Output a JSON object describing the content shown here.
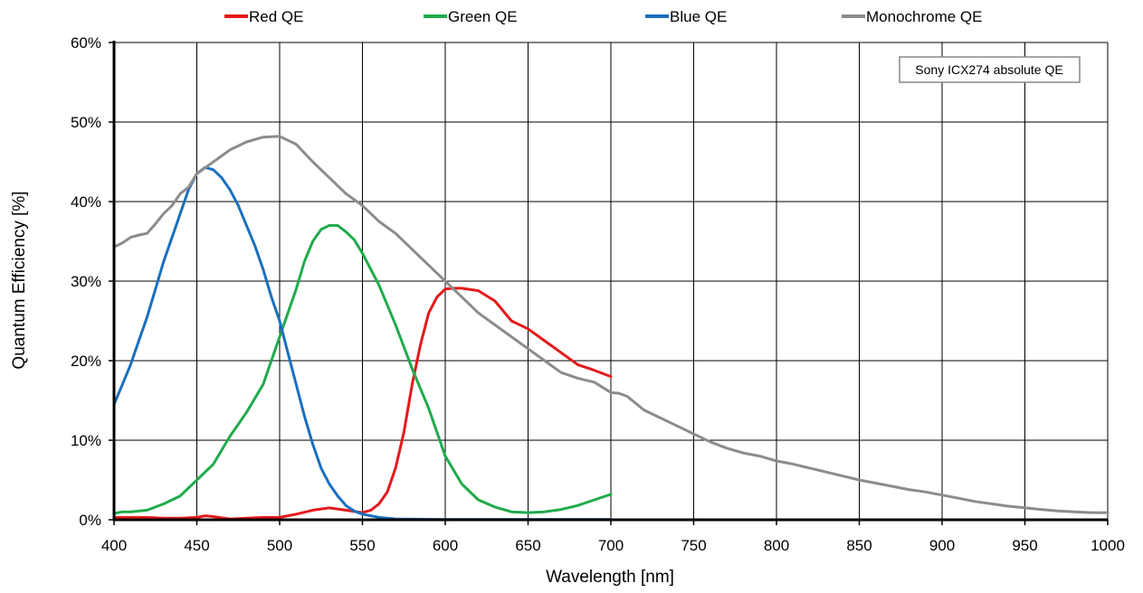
{
  "chart_data": {
    "type": "line",
    "xlabel": "Wavelength [nm]",
    "ylabel": "Quantum Efficiency [%]",
    "xlim": [
      400,
      1000
    ],
    "ylim": [
      0,
      60
    ],
    "x_ticks": [
      400,
      450,
      500,
      550,
      600,
      650,
      700,
      750,
      800,
      850,
      900,
      950,
      1000
    ],
    "y_ticks": [
      0,
      10,
      20,
      30,
      40,
      50,
      60
    ],
    "y_tick_labels": [
      "0%",
      "10%",
      "20%",
      "30%",
      "40%",
      "50%",
      "60%"
    ],
    "grid": true,
    "legend_position": "top",
    "annotation": "Sony ICX274 absolute QE",
    "series": [
      {
        "name": "Red QE",
        "color": "#e3191c",
        "points": [
          [
            400,
            0.3
          ],
          [
            410,
            0.3
          ],
          [
            420,
            0.3
          ],
          [
            430,
            0.2
          ],
          [
            440,
            0.2
          ],
          [
            450,
            0.3
          ],
          [
            455,
            0.5
          ],
          [
            460,
            0.4
          ],
          [
            470,
            0.1
          ],
          [
            480,
            0.2
          ],
          [
            490,
            0.3
          ],
          [
            500,
            0.3
          ],
          [
            510,
            0.7
          ],
          [
            520,
            1.2
          ],
          [
            530,
            1.5
          ],
          [
            540,
            1.2
          ],
          [
            550,
            0.9
          ],
          [
            555,
            1.2
          ],
          [
            560,
            2.0
          ],
          [
            565,
            3.5
          ],
          [
            570,
            6.5
          ],
          [
            575,
            11
          ],
          [
            580,
            17
          ],
          [
            585,
            22
          ],
          [
            590,
            26
          ],
          [
            595,
            28
          ],
          [
            600,
            29
          ],
          [
            605,
            29.1
          ],
          [
            610,
            29.1
          ],
          [
            620,
            28.8
          ],
          [
            630,
            27.5
          ],
          [
            640,
            25
          ],
          [
            650,
            24
          ],
          [
            660,
            22.5
          ],
          [
            670,
            21
          ],
          [
            680,
            19.5
          ],
          [
            690,
            18.8
          ],
          [
            700,
            18
          ]
        ]
      },
      {
        "name": "Green QE",
        "color": "#1fab4b",
        "points": [
          [
            400,
            0.8
          ],
          [
            405,
            1.0
          ],
          [
            410,
            1.0
          ],
          [
            420,
            1.2
          ],
          [
            430,
            2.0
          ],
          [
            440,
            3.0
          ],
          [
            450,
            5.0
          ],
          [
            460,
            7.0
          ],
          [
            470,
            10.5
          ],
          [
            480,
            13.5
          ],
          [
            490,
            17.0
          ],
          [
            500,
            23.0
          ],
          [
            510,
            29.0
          ],
          [
            515,
            32.5
          ],
          [
            520,
            35.0
          ],
          [
            525,
            36.5
          ],
          [
            530,
            37.0
          ],
          [
            535,
            37.0
          ],
          [
            540,
            36.2
          ],
          [
            545,
            35.2
          ],
          [
            550,
            33.5
          ],
          [
            560,
            29.5
          ],
          [
            570,
            24.5
          ],
          [
            580,
            19.0
          ],
          [
            590,
            14.0
          ],
          [
            600,
            8.0
          ],
          [
            610,
            4.5
          ],
          [
            620,
            2.5
          ],
          [
            630,
            1.6
          ],
          [
            640,
            1.0
          ],
          [
            650,
            0.9
          ],
          [
            660,
            1.0
          ],
          [
            670,
            1.3
          ],
          [
            680,
            1.8
          ],
          [
            690,
            2.5
          ],
          [
            700,
            3.2
          ]
        ]
      },
      {
        "name": "Blue QE",
        "color": "#1a6fbd",
        "points": [
          [
            400,
            14.5
          ],
          [
            405,
            17.0
          ],
          [
            410,
            19.5
          ],
          [
            415,
            22.5
          ],
          [
            420,
            25.5
          ],
          [
            425,
            29.0
          ],
          [
            430,
            32.5
          ],
          [
            435,
            35.5
          ],
          [
            440,
            38.5
          ],
          [
            445,
            41.5
          ],
          [
            450,
            43.5
          ],
          [
            455,
            44.3
          ],
          [
            460,
            44.0
          ],
          [
            465,
            43.0
          ],
          [
            470,
            41.5
          ],
          [
            475,
            39.5
          ],
          [
            480,
            37.0
          ],
          [
            485,
            34.5
          ],
          [
            490,
            31.5
          ],
          [
            495,
            28.0
          ],
          [
            500,
            25.0
          ],
          [
            505,
            21.0
          ],
          [
            510,
            17.0
          ],
          [
            515,
            13.0
          ],
          [
            520,
            9.5
          ],
          [
            525,
            6.5
          ],
          [
            530,
            4.5
          ],
          [
            535,
            3.0
          ],
          [
            540,
            1.8
          ],
          [
            545,
            1.1
          ],
          [
            550,
            0.7
          ],
          [
            560,
            0.3
          ],
          [
            570,
            0.1
          ],
          [
            600,
            0.05
          ],
          [
            650,
            0.05
          ],
          [
            700,
            0.05
          ]
        ]
      },
      {
        "name": "Monochrome QE",
        "color": "#8c8c8c",
        "points": [
          [
            400,
            34.3
          ],
          [
            405,
            34.8
          ],
          [
            410,
            35.5
          ],
          [
            415,
            35.8
          ],
          [
            420,
            36.0
          ],
          [
            425,
            37.2
          ],
          [
            430,
            38.5
          ],
          [
            435,
            39.5
          ],
          [
            440,
            41.0
          ],
          [
            445,
            41.8
          ],
          [
            450,
            43.5
          ],
          [
            460,
            45.0
          ],
          [
            470,
            46.5
          ],
          [
            480,
            47.5
          ],
          [
            490,
            48.1
          ],
          [
            500,
            48.2
          ],
          [
            510,
            47.2
          ],
          [
            520,
            45.0
          ],
          [
            530,
            43.0
          ],
          [
            540,
            41.0
          ],
          [
            550,
            39.5
          ],
          [
            560,
            37.5
          ],
          [
            570,
            36.0
          ],
          [
            580,
            34.0
          ],
          [
            590,
            32.0
          ],
          [
            600,
            30.0
          ],
          [
            610,
            28.0
          ],
          [
            620,
            26.0
          ],
          [
            630,
            24.5
          ],
          [
            640,
            23.0
          ],
          [
            650,
            21.5
          ],
          [
            660,
            20.0
          ],
          [
            670,
            18.5
          ],
          [
            680,
            17.8
          ],
          [
            690,
            17.3
          ],
          [
            700,
            16.0
          ],
          [
            705,
            15.9
          ],
          [
            710,
            15.5
          ],
          [
            720,
            13.8
          ],
          [
            730,
            12.8
          ],
          [
            740,
            11.8
          ],
          [
            750,
            10.8
          ],
          [
            760,
            9.8
          ],
          [
            770,
            9.0
          ],
          [
            780,
            8.4
          ],
          [
            790,
            8.0
          ],
          [
            800,
            7.4
          ],
          [
            810,
            7.0
          ],
          [
            820,
            6.5
          ],
          [
            830,
            6.0
          ],
          [
            840,
            5.5
          ],
          [
            850,
            5.0
          ],
          [
            860,
            4.6
          ],
          [
            870,
            4.2
          ],
          [
            880,
            3.8
          ],
          [
            890,
            3.5
          ],
          [
            900,
            3.1
          ],
          [
            910,
            2.7
          ],
          [
            920,
            2.3
          ],
          [
            930,
            2.0
          ],
          [
            940,
            1.7
          ],
          [
            950,
            1.5
          ],
          [
            960,
            1.3
          ],
          [
            970,
            1.1
          ],
          [
            980,
            1.0
          ],
          [
            990,
            0.9
          ],
          [
            1000,
            0.9
          ]
        ]
      }
    ]
  }
}
